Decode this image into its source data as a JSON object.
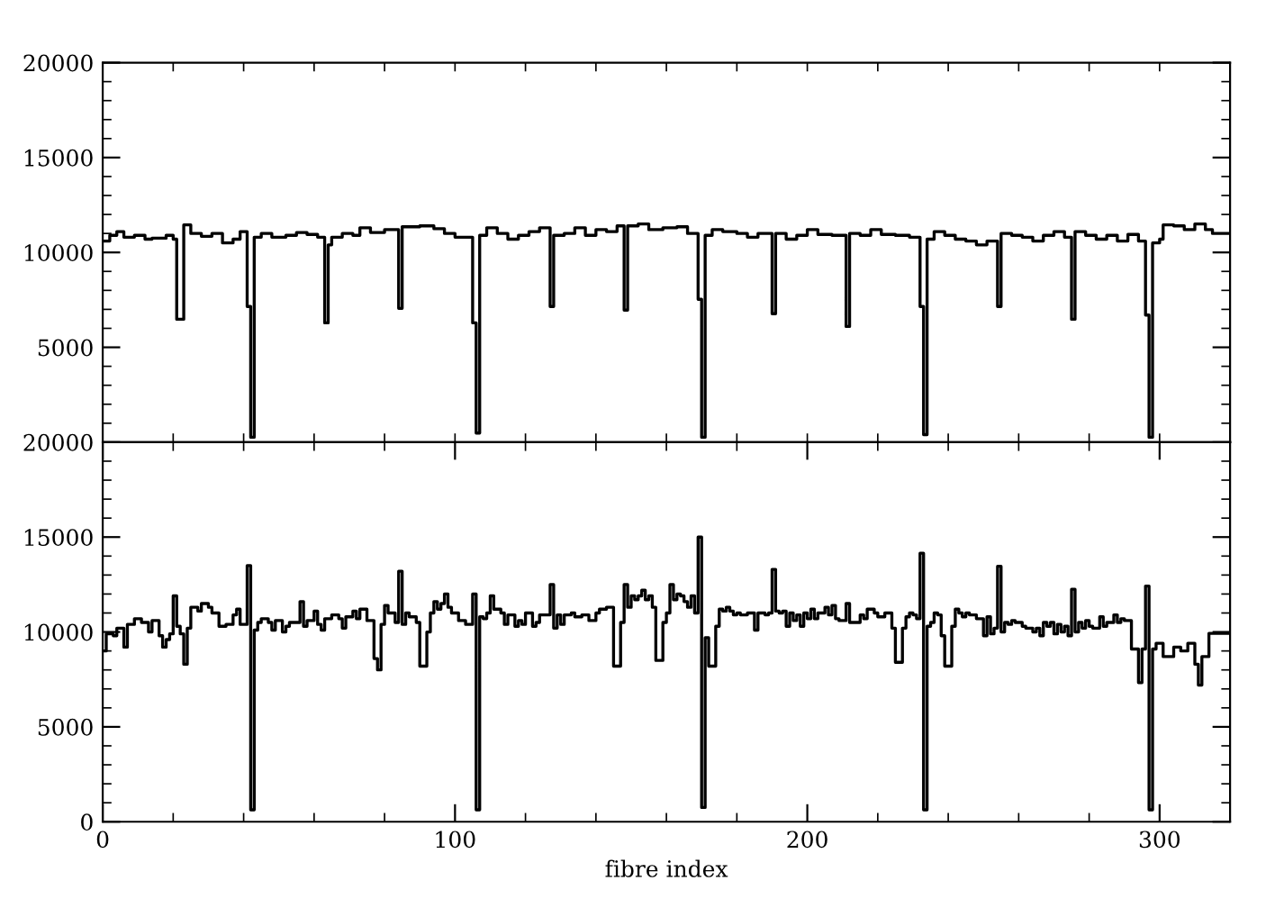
{
  "chart_data": [
    {
      "type": "step",
      "xlim": [
        0,
        320
      ],
      "ylim": [
        0,
        20000
      ],
      "xticks": [
        {
          "value": 0,
          "label": null
        },
        {
          "value": 20,
          "label": null
        },
        {
          "value": 40,
          "label": null
        },
        {
          "value": 60,
          "label": null
        },
        {
          "value": 80,
          "label": null
        },
        {
          "value": 100,
          "label": null
        },
        {
          "value": 120,
          "label": null
        },
        {
          "value": 140,
          "label": null
        },
        {
          "value": 160,
          "label": null
        },
        {
          "value": 180,
          "label": null
        },
        {
          "value": 200,
          "label": null
        },
        {
          "value": 220,
          "label": null
        },
        {
          "value": 240,
          "label": null
        },
        {
          "value": 260,
          "label": null
        },
        {
          "value": 280,
          "label": null
        },
        {
          "value": 300,
          "label": null
        }
      ],
      "yticks": [
        {
          "value": 0,
          "label": null
        },
        {
          "value": 1000,
          "label": null
        },
        {
          "value": 2000,
          "label": null
        },
        {
          "value": 3000,
          "label": null
        },
        {
          "value": 4000,
          "label": null
        },
        5000,
        {
          "value": 6000,
          "label": null
        },
        {
          "value": 7000,
          "label": null
        },
        {
          "value": 8000,
          "label": null
        },
        {
          "value": 9000,
          "label": null
        },
        10000,
        {
          "value": 11000,
          "label": null
        },
        {
          "value": 12000,
          "label": null
        },
        {
          "value": 13000,
          "label": null
        },
        {
          "value": 14000,
          "label": null
        },
        15000,
        {
          "value": 16000,
          "label": null
        },
        {
          "value": 17000,
          "label": null
        },
        {
          "value": 18000,
          "label": null
        },
        {
          "value": 19000,
          "label": null
        },
        20000
      ],
      "tick_labels": "y",
      "series": [
        {
          "color": "#000000",
          "x": [
            0,
            2,
            4,
            6,
            9,
            12,
            14,
            18,
            20,
            21,
            23,
            25,
            28,
            31,
            34,
            37,
            39,
            41,
            42,
            43,
            45,
            48,
            52,
            55,
            58,
            61,
            63,
            64,
            65,
            68,
            71,
            73,
            76,
            80,
            84,
            85,
            90,
            94,
            97,
            100,
            105,
            106,
            107,
            109,
            112,
            115,
            118,
            121,
            124,
            127,
            128,
            131,
            134,
            137,
            140,
            143,
            146,
            148,
            149,
            152,
            155,
            159,
            163,
            166,
            169,
            170,
            171,
            173,
            176,
            180,
            183,
            186,
            190,
            191,
            194,
            197,
            200,
            203,
            207,
            211,
            212,
            215,
            218,
            221,
            225,
            229,
            232,
            233,
            234,
            236,
            239,
            242,
            245,
            248,
            251,
            254,
            255,
            258,
            261,
            264,
            267,
            270,
            273,
            275,
            276,
            279,
            282,
            285,
            288,
            291,
            294,
            296,
            297,
            298,
            300,
            301,
            304,
            307,
            310,
            313,
            315,
            320
          ],
          "values": [
            10600,
            10900,
            11100,
            10800,
            10900,
            10700,
            10750,
            10900,
            10700,
            6480,
            11450,
            11000,
            10850,
            11000,
            10500,
            10700,
            11100,
            7150,
            260,
            10800,
            11000,
            10800,
            10900,
            11050,
            10950,
            10800,
            6290,
            10400,
            10800,
            11000,
            10900,
            11300,
            11050,
            11200,
            7050,
            11350,
            11400,
            11250,
            11000,
            10800,
            6290,
            480,
            10900,
            11300,
            11000,
            10700,
            10900,
            11100,
            11300,
            7150,
            10900,
            11000,
            11300,
            10900,
            11200,
            11100,
            11400,
            6960,
            11400,
            11500,
            11200,
            11300,
            11350,
            11000,
            7530,
            260,
            10900,
            11200,
            11100,
            11000,
            10800,
            11000,
            6770,
            11000,
            10700,
            10900,
            11200,
            10950,
            10900,
            6100,
            11000,
            10900,
            11200,
            10950,
            10900,
            10800,
            7150,
            400,
            10700,
            11100,
            10900,
            10700,
            10600,
            10400,
            10600,
            7150,
            11000,
            10900,
            10800,
            10600,
            10900,
            11100,
            10800,
            6480,
            11100,
            10900,
            10700,
            10900,
            10600,
            10950,
            10600,
            6700,
            260,
            10500,
            10700,
            11450,
            11400,
            11200,
            11500,
            11200,
            11000,
            11000
          ]
        }
      ]
    },
    {
      "type": "step",
      "xlim": [
        0,
        320
      ],
      "ylim": [
        0,
        20000
      ],
      "xlabel": "fibre index",
      "xticks": [
        0,
        {
          "value": 20,
          "label": null
        },
        {
          "value": 40,
          "label": null
        },
        {
          "value": 60,
          "label": null
        },
        {
          "value": 80,
          "label": null
        },
        100,
        {
          "value": 120,
          "label": null
        },
        {
          "value": 140,
          "label": null
        },
        {
          "value": 160,
          "label": null
        },
        {
          "value": 180,
          "label": null
        },
        200,
        {
          "value": 220,
          "label": null
        },
        {
          "value": 240,
          "label": null
        },
        {
          "value": 260,
          "label": null
        },
        {
          "value": 280,
          "label": null
        },
        300
      ],
      "yticks": [
        0,
        {
          "value": 1000,
          "label": null
        },
        {
          "value": 2000,
          "label": null
        },
        {
          "value": 3000,
          "label": null
        },
        {
          "value": 4000,
          "label": null
        },
        5000,
        {
          "value": 6000,
          "label": null
        },
        {
          "value": 7000,
          "label": null
        },
        {
          "value": 8000,
          "label": null
        },
        {
          "value": 9000,
          "label": null
        },
        10000,
        {
          "value": 11000,
          "label": null
        },
        {
          "value": 12000,
          "label": null
        },
        {
          "value": 13000,
          "label": null
        },
        {
          "value": 14000,
          "label": null
        },
        15000,
        {
          "value": 16000,
          "label": null
        },
        {
          "value": 17000,
          "label": null
        },
        {
          "value": 18000,
          "label": null
        },
        {
          "value": 19000,
          "label": null
        },
        20000
      ],
      "series": [
        {
          "color": "#000000",
          "x": [
            0,
            1,
            3,
            4,
            6,
            7,
            9,
            11,
            13,
            14,
            16,
            17,
            18,
            19,
            20,
            21,
            22,
            23,
            24,
            25,
            27,
            28,
            30,
            31,
            33,
            35,
            37,
            38,
            39,
            41,
            42,
            43,
            44,
            45,
            47,
            48,
            49,
            51,
            52,
            53,
            55,
            56,
            57,
            58,
            60,
            61,
            62,
            63,
            65,
            67,
            68,
            69,
            71,
            72,
            73,
            75,
            77,
            78,
            79,
            80,
            81,
            83,
            84,
            85,
            86,
            87,
            89,
            90,
            92,
            93,
            94,
            95,
            96,
            97,
            98,
            99,
            101,
            103,
            105,
            106,
            107,
            108,
            109,
            110,
            111,
            113,
            114,
            115,
            117,
            118,
            119,
            120,
            122,
            123,
            124,
            127,
            128,
            129,
            130,
            131,
            133,
            134,
            136,
            138,
            140,
            141,
            143,
            145,
            147,
            148,
            149,
            150,
            151,
            152,
            153,
            154,
            155,
            156,
            157,
            159,
            160,
            161,
            162,
            163,
            164,
            165,
            166,
            167,
            168,
            169,
            170,
            171,
            172,
            174,
            175,
            176,
            177,
            178,
            179,
            180,
            181,
            183,
            185,
            186,
            188,
            189,
            190,
            191,
            192,
            193,
            194,
            195,
            196,
            197,
            198,
            199,
            200,
            201,
            202,
            203,
            205,
            206,
            207,
            208,
            209,
            211,
            212,
            214,
            215,
            216,
            217,
            219,
            220,
            222,
            224,
            225,
            227,
            228,
            229,
            230,
            231,
            232,
            233,
            234,
            235,
            236,
            237,
            238,
            239,
            241,
            242,
            243,
            244,
            245,
            246,
            248,
            250,
            251,
            252,
            253,
            254,
            255,
            256,
            257,
            258,
            259,
            261,
            262,
            264,
            265,
            266,
            267,
            268,
            269,
            270,
            271,
            272,
            273,
            274,
            275,
            276,
            277,
            278,
            279,
            280,
            281,
            283,
            284,
            285,
            286,
            287,
            288,
            289,
            290,
            292,
            294,
            295,
            296,
            297,
            298,
            299,
            301,
            304,
            306,
            308,
            310,
            311,
            312,
            314,
            320
          ],
          "values": [
            9000,
            9900,
            9800,
            10200,
            9200,
            10400,
            10700,
            10500,
            10000,
            10600,
            9800,
            9200,
            9600,
            9900,
            11900,
            10300,
            9900,
            8300,
            10200,
            11300,
            11100,
            11500,
            11300,
            11000,
            10300,
            10400,
            10900,
            11200,
            10400,
            13500,
            630,
            10100,
            10500,
            10700,
            10500,
            10100,
            10600,
            10000,
            10300,
            10500,
            10500,
            11600,
            10300,
            10600,
            11100,
            10400,
            10100,
            10700,
            10900,
            10700,
            10200,
            10800,
            11100,
            10700,
            11200,
            10600,
            8600,
            8000,
            10400,
            11400,
            11000,
            10500,
            13200,
            10400,
            11000,
            10800,
            10500,
            8200,
            10000,
            11000,
            11600,
            11200,
            11500,
            12000,
            11300,
            11000,
            10600,
            10400,
            12000,
            630,
            10800,
            10700,
            11000,
            11900,
            11200,
            11000,
            10400,
            10900,
            10300,
            10600,
            10400,
            11000,
            10300,
            10500,
            10900,
            12500,
            10200,
            10900,
            10400,
            10900,
            11000,
            10800,
            10900,
            10600,
            11000,
            11200,
            11300,
            8200,
            10500,
            12500,
            11300,
            11900,
            11700,
            11900,
            12200,
            11700,
            11900,
            11300,
            8500,
            10500,
            11000,
            12500,
            11700,
            12000,
            11900,
            11600,
            11300,
            11900,
            11000,
            15000,
            750,
            9700,
            8200,
            10300,
            11200,
            11100,
            11300,
            11100,
            10900,
            11000,
            10900,
            11000,
            10100,
            11000,
            10900,
            11000,
            13300,
            11100,
            11000,
            11100,
            10300,
            11000,
            10600,
            10900,
            10300,
            11000,
            10700,
            11200,
            10700,
            11000,
            11300,
            10900,
            11400,
            10700,
            10600,
            11500,
            10500,
            10500,
            10900,
            10700,
            11200,
            11000,
            10800,
            11000,
            10200,
            8400,
            10200,
            10800,
            11000,
            10900,
            10700,
            14150,
            630,
            10300,
            10500,
            11000,
            10900,
            9800,
            8200,
            10300,
            11200,
            11000,
            10800,
            11000,
            10900,
            10700,
            9800,
            10800,
            9900,
            10200,
            13460,
            10000,
            10500,
            10400,
            10600,
            10500,
            10300,
            10200,
            10000,
            10200,
            9800,
            10500,
            10300,
            10500,
            9900,
            10400,
            10000,
            10300,
            9800,
            12250,
            10000,
            10500,
            10200,
            10600,
            10300,
            10200,
            10800,
            10300,
            10500,
            10500,
            10900,
            10500,
            10700,
            10600,
            9100,
            7330,
            9100,
            12420,
            630,
            9100,
            9400,
            8700,
            9200,
            9000,
            9400,
            8300,
            7200,
            8700,
            9930,
            9930
          ]
        }
      ]
    }
  ]
}
